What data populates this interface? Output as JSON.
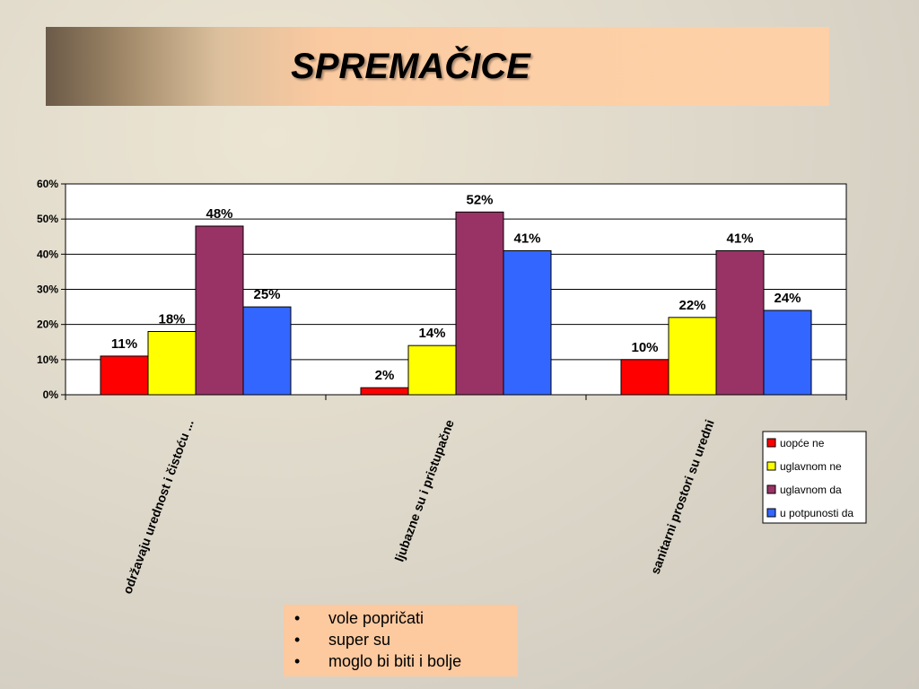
{
  "slide": {
    "title": "SPREMAČICE"
  },
  "bullets": [
    "vole popričati",
    "super su",
    "moglo bi biti i bolje"
  ],
  "chart_data": {
    "type": "bar",
    "categories": [
      "održavaju urednost i čistoću ...",
      "ljubazne su i pristupačne",
      "sanitarni prostori su uredni"
    ],
    "series": [
      {
        "name": "uopće ne",
        "color": "#ff0000",
        "values": [
          11,
          2,
          10
        ],
        "labels": [
          "11%",
          "2%",
          "10%"
        ]
      },
      {
        "name": "uglavnom ne",
        "color": "#ffff00",
        "values": [
          18,
          14,
          22
        ],
        "labels": [
          "18%",
          "14%",
          "22%"
        ]
      },
      {
        "name": "uglavnom da",
        "color": "#993366",
        "values": [
          48,
          52,
          41
        ],
        "labels": [
          "48%",
          "52%",
          "41%"
        ]
      },
      {
        "name": "u potpunosti da",
        "color": "#3366ff",
        "values": [
          25,
          41,
          24
        ],
        "labels": [
          "25%",
          "41%",
          "24%"
        ]
      }
    ],
    "yticks": [
      "0%",
      "10%",
      "20%",
      "30%",
      "40%",
      "50%",
      "60%"
    ],
    "ylim": [
      0,
      60
    ],
    "grid": true,
    "legend": "right",
    "title": "",
    "xlabel": "",
    "ylabel": ""
  }
}
